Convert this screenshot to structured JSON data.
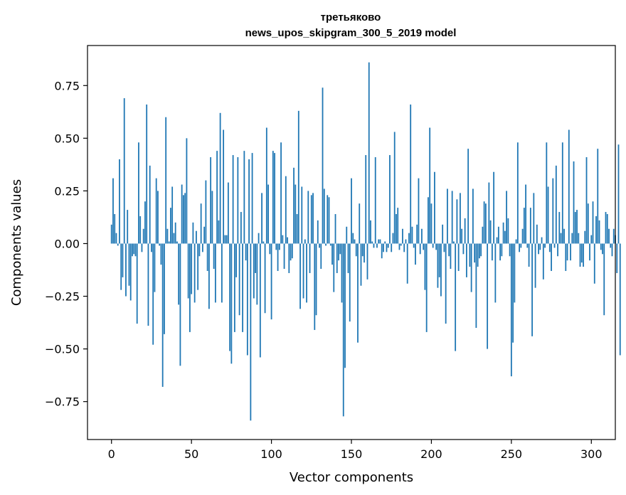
{
  "chart_data": {
    "type": "bar",
    "title": "третьяково",
    "subtitle": "news_upos_skipgram_300_5_2019 model",
    "xlabel": "Vector components",
    "ylabel": "Components values",
    "xlim": [
      -15,
      315
    ],
    "ylim": [
      -0.93,
      0.94
    ],
    "xticks": [
      0,
      50,
      100,
      150,
      200,
      250,
      300
    ],
    "xtick_labels": [
      "0",
      "50",
      "100",
      "150",
      "200",
      "250",
      "300"
    ],
    "yticks": [
      -0.75,
      -0.5,
      -0.25,
      0.0,
      0.25,
      0.5,
      0.75
    ],
    "ytick_labels": [
      "−0.75",
      "−0.50",
      "−0.25",
      "0.00",
      "0.25",
      "0.50",
      "0.75"
    ],
    "grid": false,
    "color": "#1f77b4",
    "values": [
      0.09,
      0.31,
      0.14,
      0.05,
      -0.01,
      0.4,
      -0.22,
      -0.16,
      0.69,
      -0.25,
      0.16,
      -0.2,
      -0.27,
      -0.06,
      -0.05,
      -0.06,
      -0.38,
      0.48,
      0.13,
      -0.04,
      0.07,
      0.2,
      0.66,
      -0.39,
      0.37,
      -0.04,
      -0.48,
      -0.23,
      0.31,
      0.25,
      -0.01,
      -0.1,
      -0.68,
      -0.43,
      0.6,
      0.07,
      0.01,
      0.17,
      0.27,
      0.05,
      0.1,
      0.01,
      -0.29,
      -0.58,
      0.28,
      0.23,
      0.24,
      0.5,
      -0.26,
      -0.42,
      -0.24,
      0.1,
      -0.28,
      0.06,
      -0.22,
      -0.06,
      0.19,
      -0.04,
      0.08,
      0.3,
      -0.13,
      -0.31,
      0.41,
      0.25,
      -0.12,
      -0.28,
      0.44,
      0.11,
      0.62,
      -0.28,
      0.54,
      0.04,
      0.04,
      0.29,
      -0.51,
      -0.57,
      0.42,
      -0.42,
      -0.16,
      0.41,
      -0.34,
      0.15,
      -0.42,
      0.44,
      -0.08,
      -0.53,
      0.4,
      -0.84,
      0.43,
      -0.26,
      -0.14,
      -0.29,
      0.05,
      -0.54,
      0.24,
      0.01,
      -0.33,
      0.55,
      0.28,
      -0.05,
      -0.36,
      0.44,
      0.43,
      -0.03,
      -0.13,
      -0.03,
      0.48,
      0.04,
      -0.12,
      0.32,
      0.03,
      -0.14,
      -0.08,
      -0.07,
      0.36,
      0.28,
      0.14,
      0.63,
      -0.31,
      0.27,
      -0.26,
      0.02,
      -0.28,
      0.25,
      -0.14,
      0.23,
      0.24,
      -0.41,
      -0.34,
      0.11,
      -0.02,
      -0.12,
      0.74,
      0.26,
      -0.01,
      0.23,
      0.22,
      -0.01,
      -0.1,
      -0.23,
      0.14,
      -0.14,
      -0.08,
      -0.05,
      -0.28,
      -0.82,
      -0.59,
      0.08,
      -0.14,
      -0.37,
      0.31,
      0.05,
      0.02,
      -0.06,
      -0.47,
      0.19,
      -0.2,
      -0.06,
      -0.09,
      0.42,
      -0.17,
      0.86,
      0.11,
      0.01,
      -0.02,
      0.41,
      -0.02,
      0.02,
      0.02,
      -0.07,
      -0.04,
      0.01,
      -0.04,
      -0.02,
      0.42,
      -0.04,
      0.05,
      0.53,
      0.14,
      0.17,
      -0.03,
      -0.01,
      0.07,
      -0.04,
      0.02,
      -0.19,
      0.05,
      0.66,
      0.08,
      -0.02,
      -0.1,
      0.09,
      0.31,
      -0.05,
      0.07,
      -0.03,
      -0.22,
      -0.42,
      0.22,
      0.55,
      0.19,
      -0.02,
      0.34,
      -0.03,
      -0.21,
      -0.16,
      -0.25,
      0.09,
      -0.04,
      -0.38,
      0.26,
      -0.06,
      -0.12,
      0.25,
      0.01,
      -0.51,
      0.21,
      -0.13,
      0.24,
      0.07,
      -0.05,
      0.12,
      -0.16,
      0.45,
      -0.11,
      -0.23,
      0.26,
      -0.09,
      -0.4,
      -0.11,
      -0.07,
      -0.06,
      0.08,
      0.2,
      0.19,
      -0.5,
      0.29,
      0.11,
      -0.08,
      0.34,
      -0.28,
      0.03,
      0.08,
      -0.08,
      -0.06,
      0.1,
      0.06,
      0.25,
      0.12,
      -0.06,
      -0.63,
      -0.47,
      -0.28,
      0.02,
      0.48,
      -0.04,
      -0.02,
      0.07,
      0.17,
      0.28,
      -0.02,
      -0.11,
      0.17,
      -0.44,
      0.24,
      -0.21,
      0.09,
      -0.05,
      -0.03,
      0.03,
      -0.17,
      -0.02,
      0.48,
      0.27,
      -0.04,
      -0.13,
      0.31,
      -0.02,
      0.37,
      -0.06,
      0.15,
      0.05,
      0.48,
      0.07,
      -0.13,
      -0.08,
      0.54,
      -0.08,
      0.05,
      0.39,
      0.15,
      0.16,
      0.05,
      -0.11,
      -0.09,
      -0.11,
      0.06,
      0.41,
      0.19,
      -0.08,
      0.04,
      0.2,
      -0.19,
      0.13,
      0.45,
      0.11,
      -0.03,
      -0.05,
      -0.34,
      0.15,
      0.14,
      0.07,
      -0.02,
      -0.06,
      0.07,
      0.04,
      -0.14,
      0.47,
      -0.53
    ]
  }
}
